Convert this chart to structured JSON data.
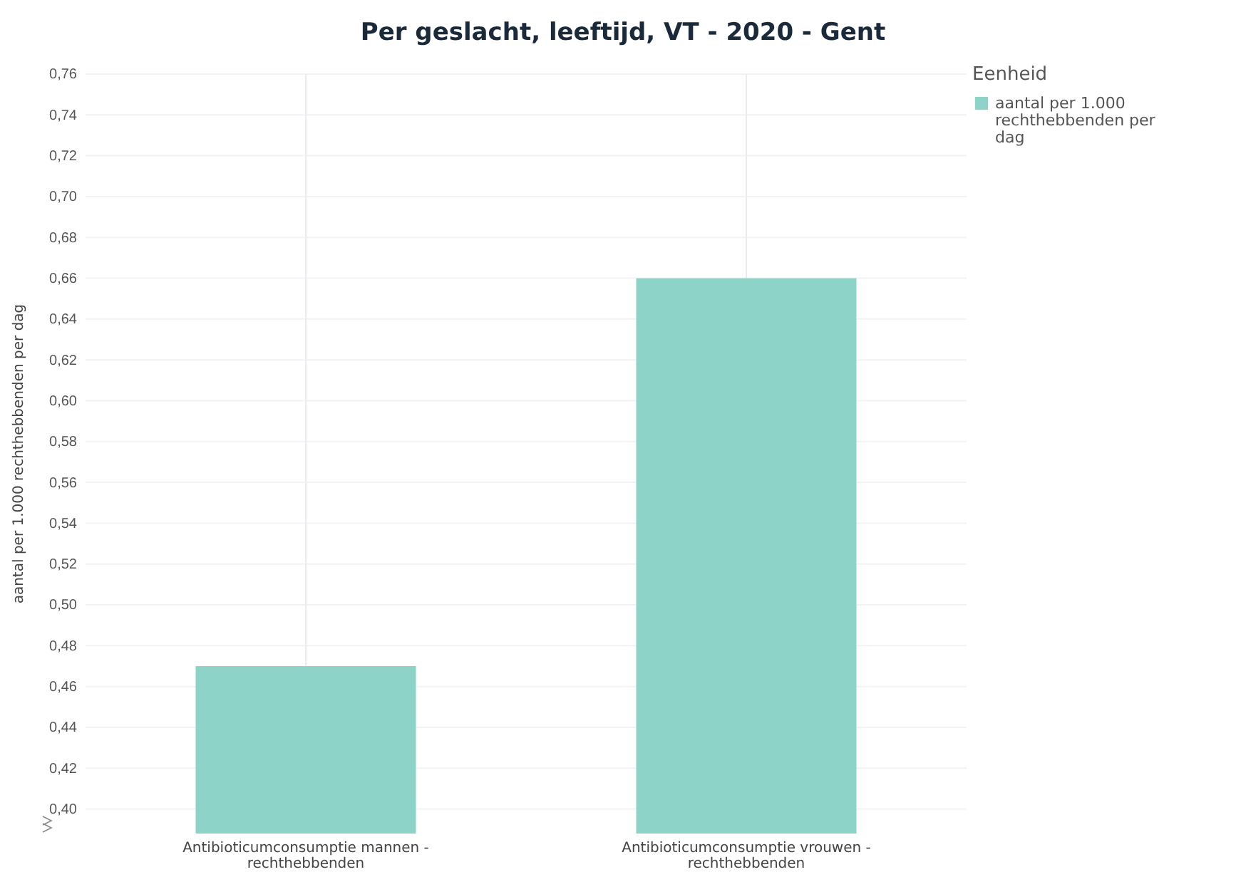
{
  "chart_data": {
    "type": "bar",
    "title": "Per geslacht, leeftijd, VT - 2020 - Gent",
    "ylabel": "aantal per 1.000 rechthebbenden per dag",
    "legend_title": "Eenheid",
    "legend": "top right",
    "grid": true,
    "categories": [
      "Antibioticumconsumptie mannen - rechthebbenden",
      "Antibioticumconsumptie vrouwen - rechthebbenden"
    ],
    "series": [
      {
        "name": "aantal per 1.000 rechthebbenden per dag",
        "color": "#8ed3c7",
        "values": [
          0.47,
          0.66
        ]
      }
    ],
    "ylim": [
      0.388,
      0.76
    ],
    "yticks": [
      {
        "value": 0.4,
        "label": "0,40"
      },
      {
        "value": 0.42,
        "label": "0,42"
      },
      {
        "value": 0.44,
        "label": "0,44"
      },
      {
        "value": 0.46,
        "label": "0,46"
      },
      {
        "value": 0.48,
        "label": "0,48"
      },
      {
        "value": 0.5,
        "label": "0,50"
      },
      {
        "value": 0.52,
        "label": "0,52"
      },
      {
        "value": 0.54,
        "label": "0,54"
      },
      {
        "value": 0.56,
        "label": "0,56"
      },
      {
        "value": 0.58,
        "label": "0,58"
      },
      {
        "value": 0.6,
        "label": "0,60"
      },
      {
        "value": 0.62,
        "label": "0,62"
      },
      {
        "value": 0.64,
        "label": "0,64"
      },
      {
        "value": 0.66,
        "label": "0,66"
      },
      {
        "value": 0.68,
        "label": "0,68"
      },
      {
        "value": 0.7,
        "label": "0,70"
      },
      {
        "value": 0.72,
        "label": "0,72"
      },
      {
        "value": 0.74,
        "label": "0,74"
      },
      {
        "value": 0.76,
        "label": "0,76"
      }
    ]
  }
}
